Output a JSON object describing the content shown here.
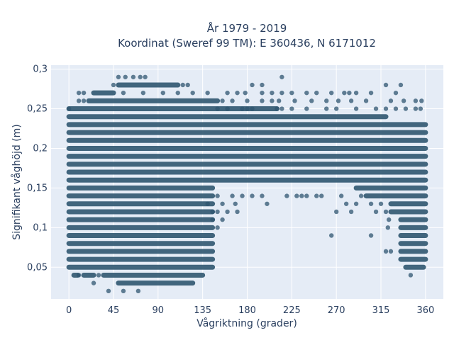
{
  "chart_data": {
    "type": "scatter",
    "title_lines": [
      "År 1979 - 2019",
      "Koordinat (Sweref 99 TM): E 360436, N 6171012"
    ],
    "xlabel": "Vågriktning (grader)",
    "ylabel": "Signifikant våghöjd (m)",
    "xlim": [
      -18,
      378
    ],
    "ylim": [
      0.01,
      0.305
    ],
    "xticks": [
      0,
      45,
      90,
      135,
      180,
      225,
      270,
      315,
      360
    ],
    "xtick_labels": [
      "0",
      "45",
      "90",
      "135",
      "180",
      "225",
      "270",
      "315",
      "360"
    ],
    "yticks": [
      0.05,
      0.1,
      0.15,
      0.2,
      0.25,
      0.3
    ],
    "ytick_labels": [
      "0,05",
      "0,1",
      "0,15",
      "0,2",
      "0,25",
      "0,3"
    ],
    "grid": true,
    "background": "#e5ecf6",
    "marker_color": "#2f5670",
    "y_levels": [
      0.02,
      0.03,
      0.04,
      0.05,
      0.06,
      0.07,
      0.08,
      0.09,
      0.1,
      0.11,
      0.12,
      0.13,
      0.14,
      0.15,
      0.16,
      0.17,
      0.18,
      0.19,
      0.2,
      0.21,
      0.22,
      0.23,
      0.24,
      0.25,
      0.26,
      0.27,
      0.28,
      0.29
    ],
    "bands": [
      {
        "y": 0.03,
        "ranges": [
          [
            50,
            125
          ]
        ]
      },
      {
        "y": 0.04,
        "ranges": [
          [
            5,
            9
          ],
          [
            15,
            25
          ],
          [
            35,
            135
          ]
        ]
      },
      {
        "y": 0.05,
        "ranges": [
          [
            0,
            145
          ],
          [
            340,
            358
          ]
        ]
      },
      {
        "y": 0.06,
        "ranges": [
          [
            0,
            145
          ],
          [
            335,
            360
          ]
        ]
      },
      {
        "y": 0.07,
        "ranges": [
          [
            0,
            145
          ],
          [
            335,
            360
          ]
        ]
      },
      {
        "y": 0.08,
        "ranges": [
          [
            0,
            145
          ],
          [
            335,
            360
          ]
        ]
      },
      {
        "y": 0.09,
        "ranges": [
          [
            0,
            145
          ],
          [
            335,
            360
          ]
        ]
      },
      {
        "y": 0.1,
        "ranges": [
          [
            0,
            145
          ],
          [
            335,
            360
          ]
        ]
      },
      {
        "y": 0.11,
        "ranges": [
          [
            0,
            145
          ],
          [
            335,
            360
          ]
        ]
      },
      {
        "y": 0.12,
        "ranges": [
          [
            0,
            145
          ],
          [
            325,
            360
          ]
        ]
      },
      {
        "y": 0.13,
        "ranges": [
          [
            0,
            145
          ],
          [
            325,
            360
          ]
        ]
      },
      {
        "y": 0.14,
        "ranges": [
          [
            0,
            145
          ],
          [
            300,
            360
          ]
        ]
      },
      {
        "y": 0.15,
        "ranges": [
          [
            0,
            145
          ],
          [
            290,
            360
          ]
        ]
      },
      {
        "y": 0.16,
        "ranges": [
          [
            0,
            360
          ]
        ]
      },
      {
        "y": 0.17,
        "ranges": [
          [
            0,
            360
          ]
        ]
      },
      {
        "y": 0.18,
        "ranges": [
          [
            0,
            360
          ]
        ]
      },
      {
        "y": 0.19,
        "ranges": [
          [
            0,
            360
          ]
        ]
      },
      {
        "y": 0.2,
        "ranges": [
          [
            0,
            360
          ]
        ]
      },
      {
        "y": 0.21,
        "ranges": [
          [
            0,
            360
          ]
        ]
      },
      {
        "y": 0.22,
        "ranges": [
          [
            0,
            360
          ]
        ]
      },
      {
        "y": 0.23,
        "ranges": [
          [
            0,
            360
          ]
        ]
      },
      {
        "y": 0.24,
        "ranges": [
          [
            0,
            320
          ]
        ]
      },
      {
        "y": 0.25,
        "ranges": [
          [
            0,
            210
          ]
        ]
      },
      {
        "y": 0.26,
        "ranges": [
          [
            20,
            150
          ]
        ]
      },
      {
        "y": 0.27,
        "ranges": [
          [
            25,
            45
          ]
        ]
      },
      {
        "y": 0.28,
        "ranges": [
          [
            50,
            110
          ]
        ]
      }
    ],
    "points": [
      [
        0,
        0.25
      ],
      [
        345,
        0.04
      ],
      [
        25,
        0.03
      ],
      [
        40,
        0.02
      ],
      [
        70,
        0.02
      ],
      [
        55,
        0.02
      ],
      [
        10,
        0.04
      ],
      [
        30,
        0.04
      ],
      [
        150,
        0.14
      ],
      [
        155,
        0.13
      ],
      [
        160,
        0.12
      ],
      [
        165,
        0.14
      ],
      [
        175,
        0.14
      ],
      [
        168,
        0.13
      ],
      [
        185,
        0.14
      ],
      [
        195,
        0.14
      ],
      [
        200,
        0.13
      ],
      [
        140,
        0.13
      ],
      [
        145,
        0.12
      ],
      [
        150,
        0.12
      ],
      [
        170,
        0.12
      ],
      [
        280,
        0.13
      ],
      [
        285,
        0.12
      ],
      [
        270,
        0.12
      ],
      [
        275,
        0.14
      ],
      [
        305,
        0.13
      ],
      [
        310,
        0.12
      ],
      [
        315,
        0.13
      ],
      [
        320,
        0.12
      ],
      [
        295,
        0.14
      ],
      [
        290,
        0.13
      ],
      [
        265,
        0.09
      ],
      [
        305,
        0.09
      ],
      [
        320,
        0.07
      ],
      [
        325,
        0.07
      ],
      [
        323,
        0.11
      ],
      [
        322,
        0.1
      ],
      [
        155,
        0.11
      ],
      [
        150,
        0.1
      ],
      [
        145,
        0.11
      ],
      [
        235,
        0.14
      ],
      [
        240,
        0.14
      ],
      [
        230,
        0.14
      ],
      [
        220,
        0.14
      ],
      [
        250,
        0.14
      ],
      [
        255,
        0.14
      ],
      [
        150,
        0.25
      ],
      [
        160,
        0.25
      ],
      [
        175,
        0.25
      ],
      [
        180,
        0.25
      ],
      [
        185,
        0.25
      ],
      [
        210,
        0.25
      ],
      [
        215,
        0.25
      ],
      [
        225,
        0.25
      ],
      [
        240,
        0.25
      ],
      [
        260,
        0.25
      ],
      [
        270,
        0.25
      ],
      [
        290,
        0.25
      ],
      [
        310,
        0.25
      ],
      [
        320,
        0.25
      ],
      [
        330,
        0.25
      ],
      [
        340,
        0.25
      ],
      [
        350,
        0.25
      ],
      [
        355,
        0.25
      ],
      [
        155,
        0.26
      ],
      [
        165,
        0.26
      ],
      [
        180,
        0.26
      ],
      [
        195,
        0.26
      ],
      [
        205,
        0.26
      ],
      [
        212,
        0.26
      ],
      [
        228,
        0.26
      ],
      [
        245,
        0.26
      ],
      [
        260,
        0.26
      ],
      [
        272,
        0.26
      ],
      [
        285,
        0.26
      ],
      [
        300,
        0.26
      ],
      [
        325,
        0.26
      ],
      [
        338,
        0.26
      ],
      [
        350,
        0.26
      ],
      [
        356,
        0.26
      ],
      [
        10,
        0.27
      ],
      [
        15,
        0.27
      ],
      [
        55,
        0.27
      ],
      [
        75,
        0.27
      ],
      [
        95,
        0.27
      ],
      [
        110,
        0.27
      ],
      [
        125,
        0.27
      ],
      [
        140,
        0.27
      ],
      [
        160,
        0.27
      ],
      [
        170,
        0.27
      ],
      [
        178,
        0.27
      ],
      [
        195,
        0.27
      ],
      [
        205,
        0.27
      ],
      [
        215,
        0.27
      ],
      [
        225,
        0.27
      ],
      [
        240,
        0.27
      ],
      [
        250,
        0.27
      ],
      [
        265,
        0.27
      ],
      [
        278,
        0.27
      ],
      [
        283,
        0.27
      ],
      [
        290,
        0.27
      ],
      [
        305,
        0.27
      ],
      [
        330,
        0.27
      ],
      [
        15,
        0.26
      ],
      [
        10,
        0.26
      ],
      [
        45,
        0.28
      ],
      [
        115,
        0.28
      ],
      [
        120,
        0.28
      ],
      [
        185,
        0.28
      ],
      [
        195,
        0.28
      ],
      [
        320,
        0.28
      ],
      [
        335,
        0.28
      ],
      [
        50,
        0.29
      ],
      [
        57,
        0.29
      ],
      [
        65,
        0.29
      ],
      [
        72,
        0.29
      ],
      [
        77,
        0.29
      ],
      [
        215,
        0.29
      ]
    ]
  }
}
